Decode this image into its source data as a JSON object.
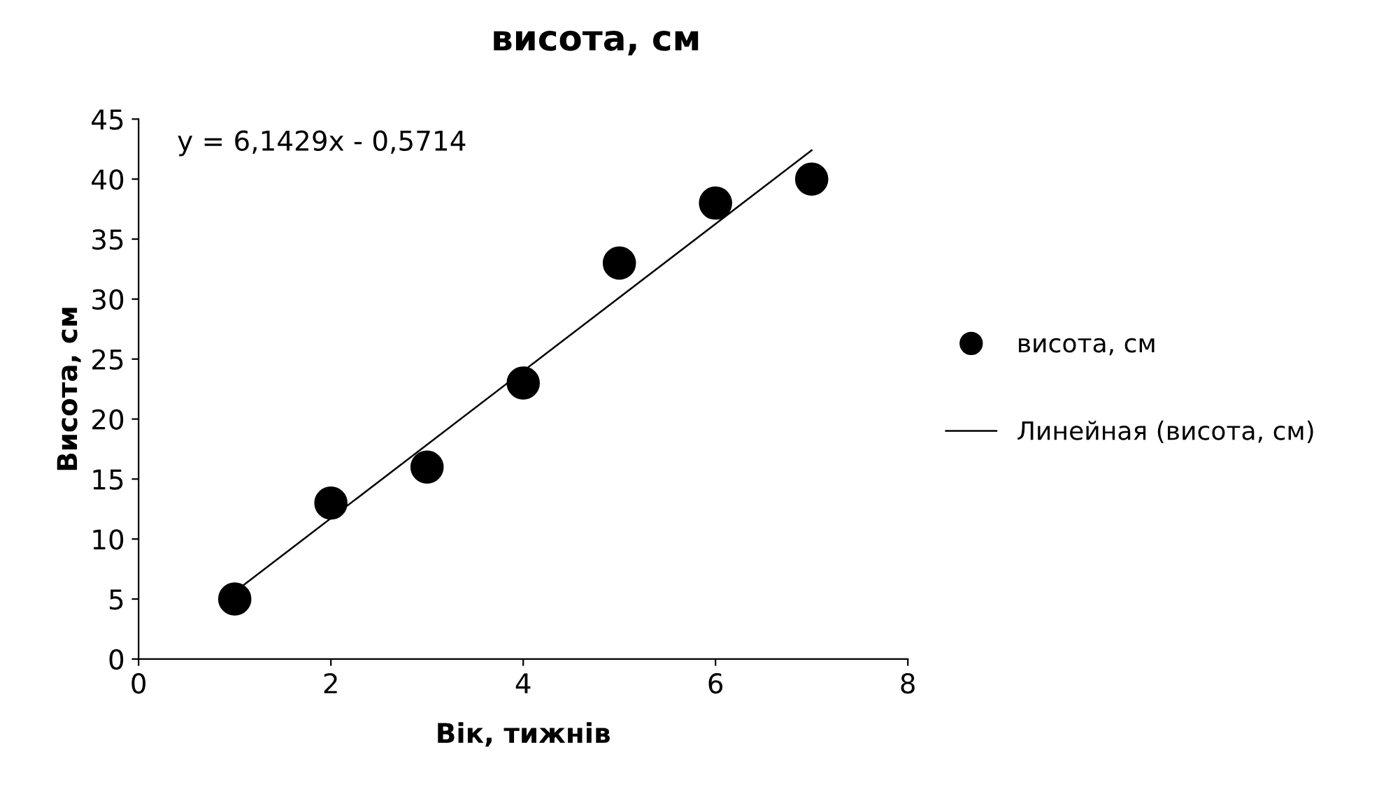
{
  "chart_data": {
    "type": "scatter",
    "title": "висота, см",
    "xlabel": "Вік, тижнів",
    "ylabel": "Висота, см",
    "x": [
      1,
      2,
      3,
      4,
      5,
      6,
      7
    ],
    "series": [
      {
        "name": "висота, см",
        "color": "#000000",
        "marker": "circle",
        "values": [
          5,
          13,
          16,
          23,
          33,
          38,
          40
        ]
      },
      {
        "name": "Линейная (висота, см)",
        "type": "line",
        "color": "#000000",
        "marker": "none",
        "line_style": "solid",
        "x": [
          1,
          7
        ],
        "values": [
          5.6,
          42.4
        ]
      }
    ],
    "annotations": [
      "y = 6,1429x - 0,5714"
    ],
    "xlim": [
      0,
      8
    ],
    "xticks": [
      0,
      2,
      4,
      6,
      8
    ],
    "ylim": [
      0,
      45
    ],
    "yticks": [
      0,
      5,
      10,
      15,
      20,
      25,
      30,
      35,
      40,
      45
    ],
    "grid": false,
    "legend": "right"
  }
}
